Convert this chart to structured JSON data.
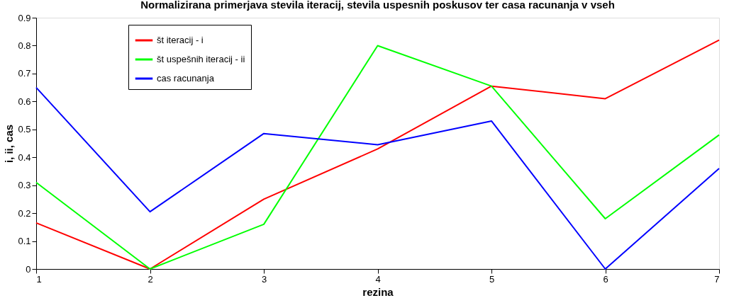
{
  "chart_data": {
    "type": "line",
    "title": "Normalizirana primerjava stevila iteracij, stevila uspesnih poskusov ter casa racunanja v vseh",
    "xlabel": "rezina",
    "ylabel": "i, ii, cas",
    "x": [
      1,
      2,
      3,
      4,
      5,
      6,
      7
    ],
    "series": [
      {
        "name": "št iteracij - i",
        "color": "#ff0000",
        "values": [
          0.165,
          0,
          0.25,
          0.43,
          0.655,
          0.61,
          0.82
        ]
      },
      {
        "name": "št uspešnih iteracij - ii",
        "color": "#00ff00",
        "values": [
          0.31,
          0,
          0.16,
          0.8,
          0.655,
          0.18,
          0.48
        ]
      },
      {
        "name": "cas racunanja",
        "color": "#0000ff",
        "values": [
          0.65,
          0.205,
          0.485,
          0.445,
          0.53,
          0,
          0.36
        ]
      }
    ],
    "xlim": [
      1,
      7
    ],
    "xticks": [
      1,
      2,
      3,
      4,
      5,
      6,
      7
    ],
    "ylim": [
      0,
      0.9
    ],
    "yticks": [
      0,
      0.1,
      0.2,
      0.3,
      0.4,
      0.5,
      0.6,
      0.7,
      0.8,
      0.9
    ],
    "grid": false,
    "legend": "top left",
    "marker": "none",
    "line_style": "solid"
  }
}
